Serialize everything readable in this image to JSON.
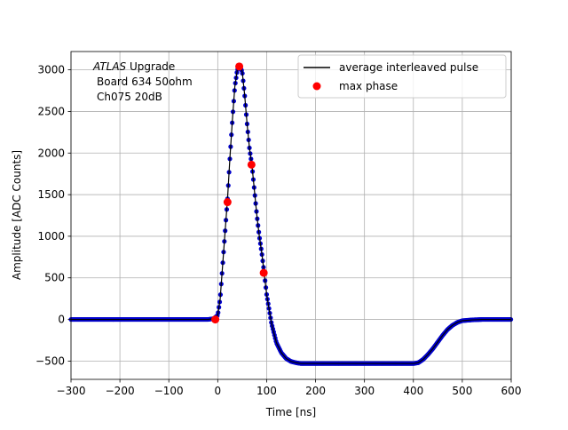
{
  "chart_data": {
    "type": "scatter",
    "title": "",
    "xlabel": "Time [ns]",
    "ylabel": "Amplitude [ADC Counts]",
    "xlim": [
      -300,
      600
    ],
    "ylim": [
      -720,
      3220
    ],
    "xticks": [
      -300,
      -200,
      -100,
      0,
      100,
      200,
      300,
      400,
      500,
      600
    ],
    "yticks": [
      -500,
      0,
      500,
      1000,
      1500,
      2000,
      2500,
      3000
    ],
    "xtick_labels": [
      "−300",
      "−200",
      "−100",
      "0",
      "100",
      "200",
      "300",
      "400",
      "500",
      "600"
    ],
    "ytick_labels": [
      "−500",
      "0",
      "500",
      "1000",
      "1500",
      "2000",
      "2500",
      "3000"
    ],
    "grid": true,
    "legend_position": "top-right",
    "annotation": {
      "line1_italic": "ATLAS",
      "line1_rest": " Upgrade",
      "line2": "Board 634 50ohm",
      "line3": "Ch075 20dB"
    },
    "series": [
      {
        "name": "average interleaved pulse",
        "kind": "line+points",
        "line_color": "#000000",
        "marker_color": "#0000cc",
        "x": [
          -300,
          -200,
          -100,
          -20,
          -8,
          0,
          5,
          10,
          15,
          20,
          25,
          30,
          35,
          40,
          45,
          50,
          55,
          60,
          65,
          70,
          75,
          80,
          85,
          90,
          95,
          100,
          110,
          120,
          130,
          140,
          150,
          160,
          170,
          180,
          200,
          250,
          300,
          350,
          400,
          410,
          420,
          430,
          440,
          450,
          460,
          470,
          480,
          490,
          500,
          520,
          540,
          560,
          580,
          600
        ],
        "y": [
          0,
          0,
          0,
          0,
          10,
          50,
          250,
          650,
          1050,
          1450,
          1950,
          2400,
          2800,
          3000,
          3040,
          2980,
          2700,
          2350,
          2050,
          1850,
          1550,
          1250,
          1000,
          800,
          560,
          300,
          -50,
          -280,
          -400,
          -470,
          -505,
          -520,
          -530,
          -530,
          -530,
          -530,
          -530,
          -530,
          -530,
          -520,
          -480,
          -420,
          -350,
          -270,
          -190,
          -120,
          -70,
          -35,
          -15,
          -5,
          0,
          0,
          0,
          0
        ]
      },
      {
        "name": "max phase",
        "kind": "points",
        "marker_color": "#ff0000",
        "x": [
          -5,
          20,
          44,
          69,
          94
        ],
        "y": [
          0,
          1410,
          3040,
          1860,
          560
        ]
      }
    ]
  }
}
